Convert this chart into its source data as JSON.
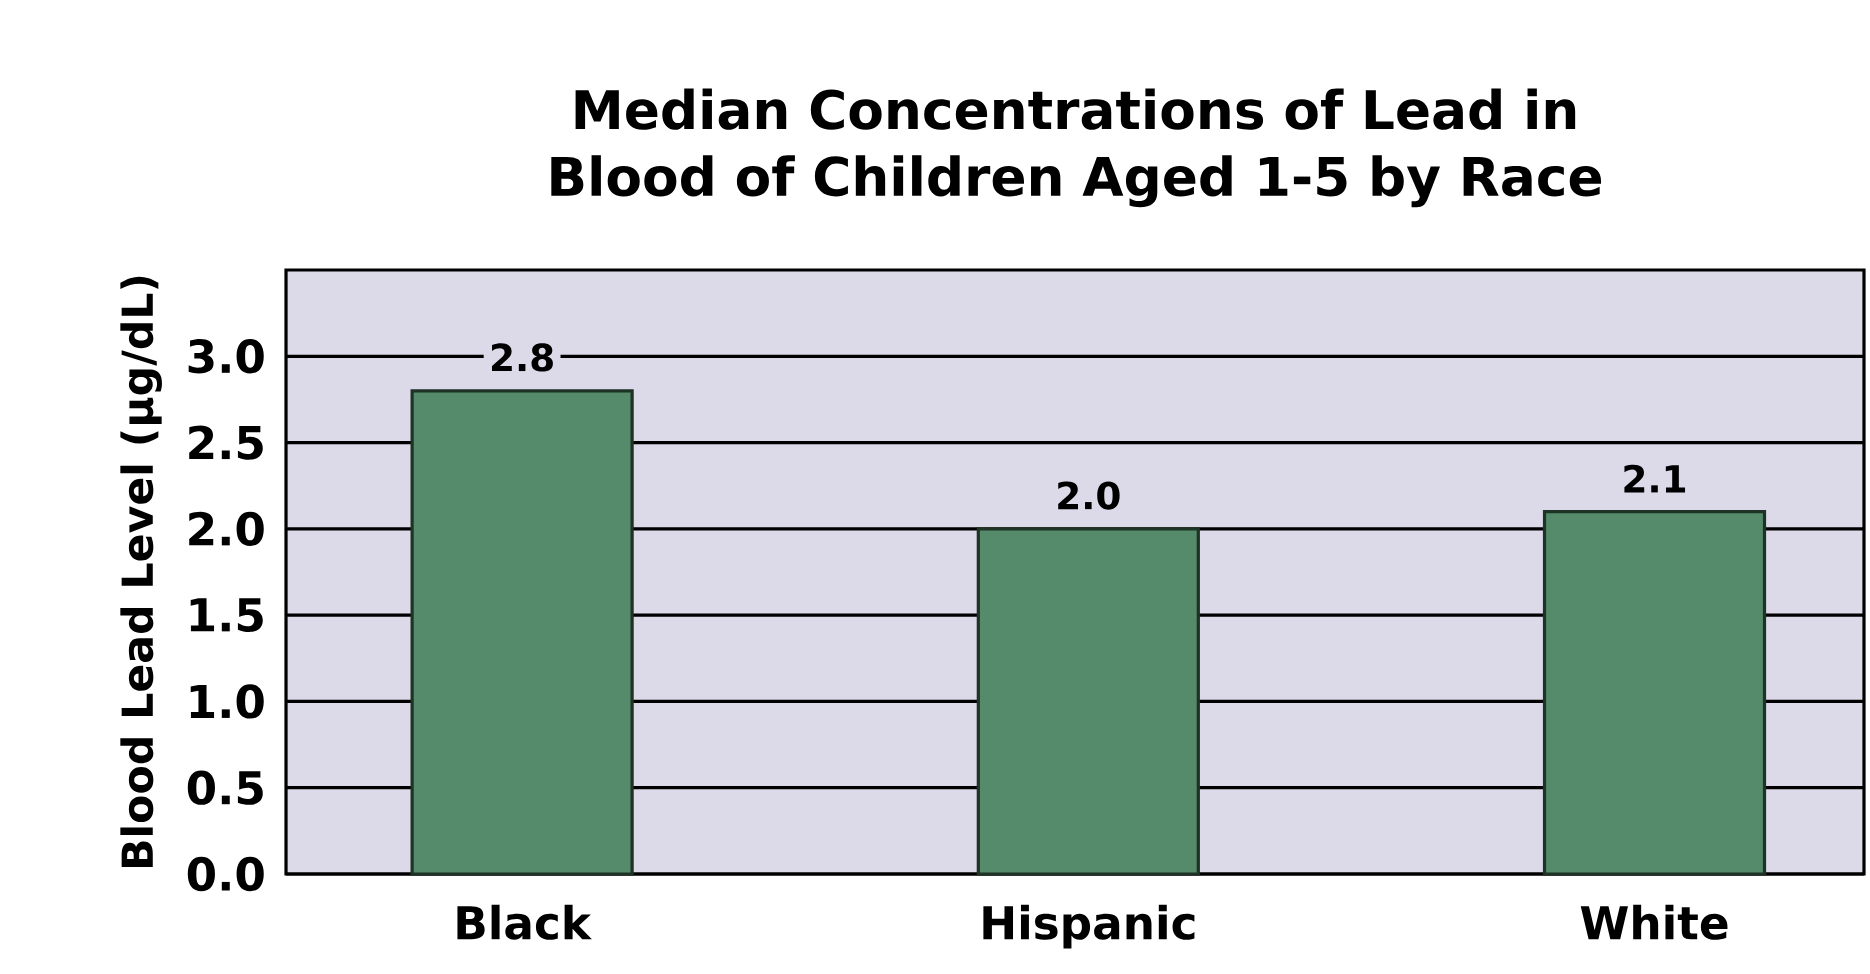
{
  "chart_data": {
    "type": "bar",
    "title": "Median Concentrations of Lead in Blood of Children Aged 1-5 by Race",
    "ylabel": "Blood Lead Level (µg/dL)",
    "categories": [
      "Black",
      "Hispanic",
      "White"
    ],
    "values": [
      2.8,
      2.0,
      2.1
    ],
    "color": "#558b6b",
    "ylim": [
      0,
      3.5
    ],
    "yticks": [
      {
        "value": 0,
        "label": "0.0"
      },
      {
        "value": 0.5,
        "label": "0.5"
      },
      {
        "value": 1,
        "label": "1.0"
      },
      {
        "value": 1.5,
        "label": "1.5"
      },
      {
        "value": 2,
        "label": "2.0"
      },
      {
        "value": 2.5,
        "label": "2.5"
      },
      {
        "value": 3,
        "label": "3.0"
      }
    ],
    "grid": "y",
    "value_labels": [
      "2.8",
      "2.0",
      "2.1"
    ]
  }
}
